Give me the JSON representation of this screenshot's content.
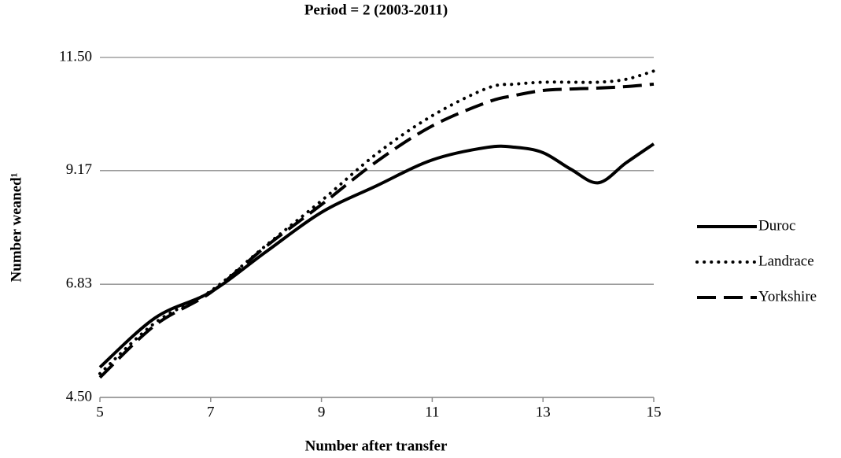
{
  "chart_data": {
    "type": "line",
    "title": "Period = 2 (2003-2011)",
    "x_label": "Number after transfer",
    "y_label": "Number weaned¹",
    "x": [
      5,
      6,
      7,
      8,
      9,
      10,
      11,
      12,
      12.5,
      13,
      13.5,
      14,
      14.5,
      15
    ],
    "series": [
      {
        "name": "Duroc",
        "color": "#000000",
        "dash": "solid",
        "values": [
          5.12,
          6.14,
          6.67,
          7.5,
          8.31,
          8.86,
          9.39,
          9.65,
          9.65,
          9.54,
          9.2,
          8.92,
          9.33,
          9.72
        ]
      },
      {
        "name": "Landrace",
        "color": "#000000",
        "dash": "dotted",
        "values": [
          4.99,
          6.04,
          6.69,
          7.63,
          8.55,
          9.52,
          10.3,
          10.87,
          10.95,
          10.99,
          10.99,
          10.99,
          11.05,
          11.22
        ]
      },
      {
        "name": "Yorkshire",
        "color": "#000000",
        "dash": "dashed",
        "values": [
          4.91,
          5.99,
          6.66,
          7.61,
          8.47,
          9.36,
          10.09,
          10.58,
          10.72,
          10.82,
          10.85,
          10.87,
          10.9,
          10.95
        ]
      }
    ],
    "xlim": [
      5,
      15
    ],
    "xticks": [
      5,
      7,
      9,
      11,
      13,
      15
    ],
    "ylim": [
      4.5,
      11.5
    ],
    "yticks": [
      {
        "value": 4.5,
        "label": "4.50"
      },
      6.83,
      9.17,
      {
        "value": 11.5,
        "label": "11.50"
      }
    ],
    "grid": true,
    "legend": "right"
  }
}
